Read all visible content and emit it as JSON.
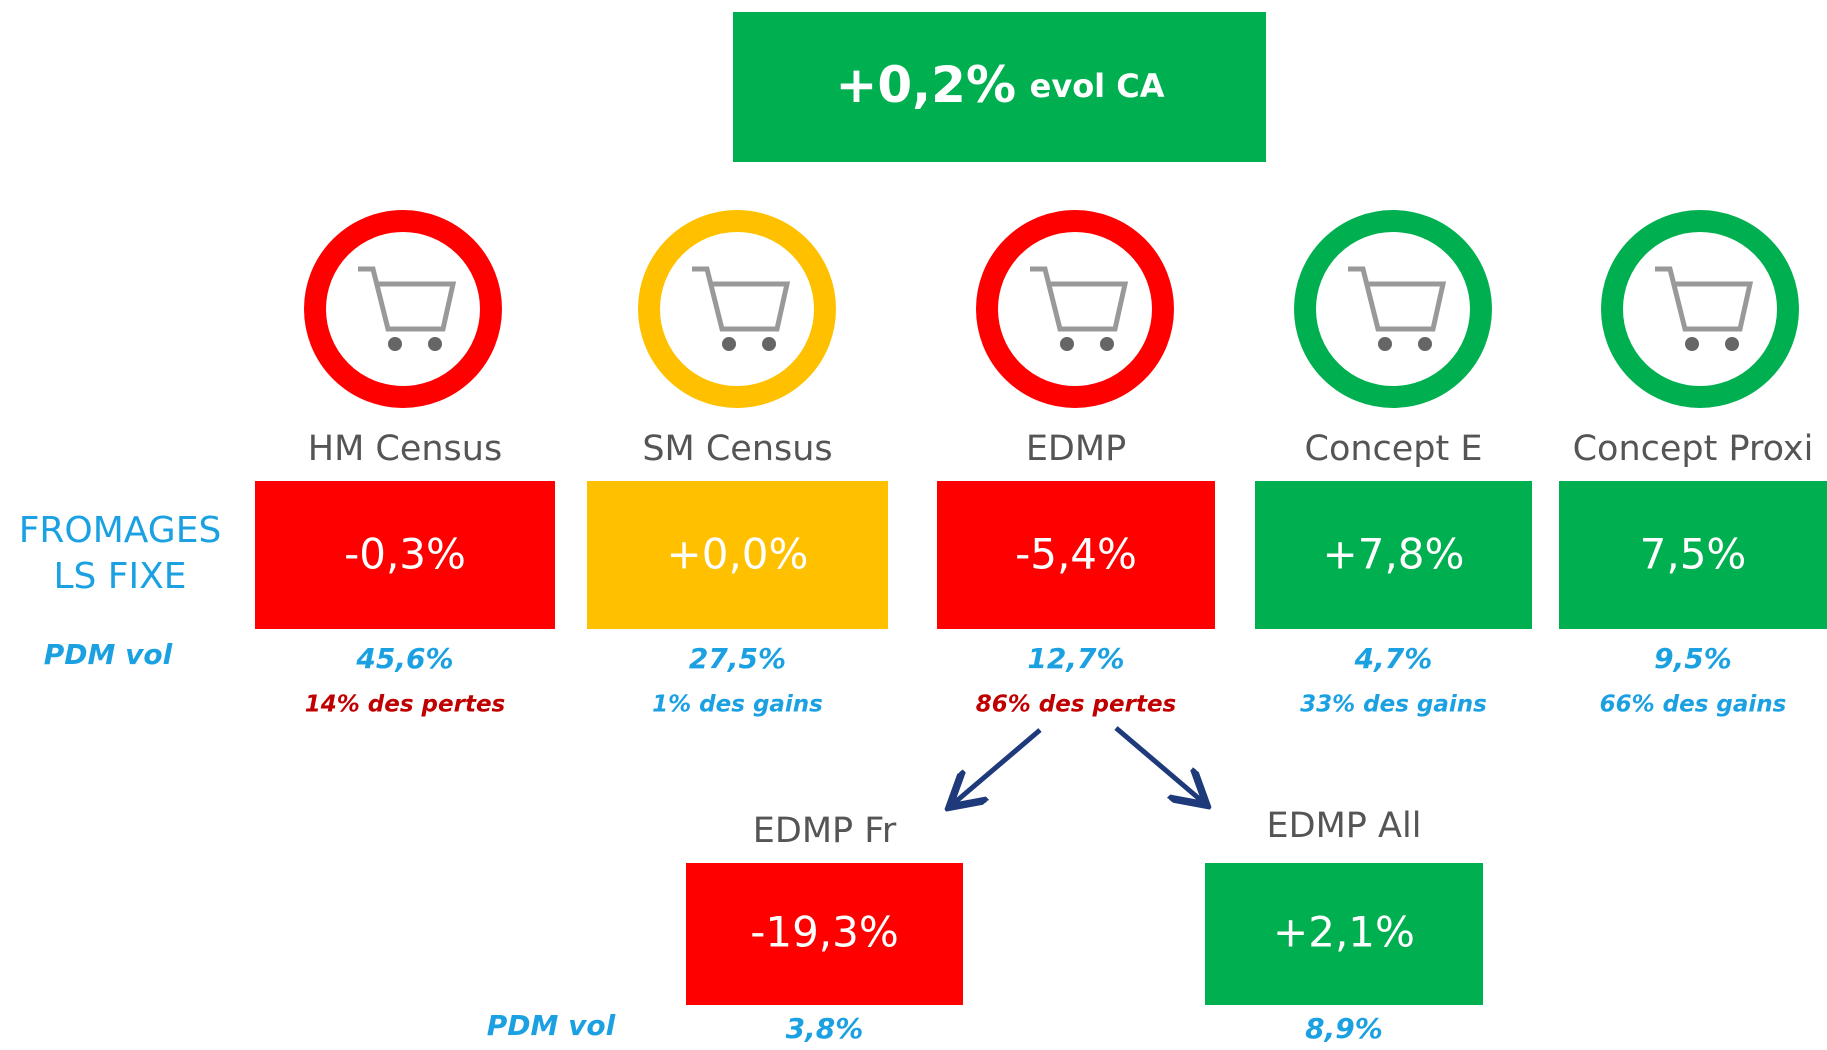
{
  "header": {
    "value": "+0,2%",
    "label": "evol CA",
    "color": "#00b050"
  },
  "row_label": [
    "FROMAGES",
    "LS FIXE"
  ],
  "pdm_label": "PDM vol",
  "formats": [
    {
      "name": "HM Census",
      "value": "-0,3%",
      "pdm": "45,6%",
      "share": "14% des pertes",
      "color": "#ff0000",
      "share_color": "#c00000"
    },
    {
      "name": "SM Census",
      "value": "+0,0%",
      "pdm": "27,5%",
      "share": "1% des gains",
      "color": "#ffc000",
      "share_color": "#1ba1e2"
    },
    {
      "name": "EDMP",
      "value": "-5,4%",
      "pdm": "12,7%",
      "share": "86% des pertes",
      "color": "#ff0000",
      "share_color": "#c00000"
    },
    {
      "name": "Concept E",
      "value": "+7,8%",
      "pdm": "4,7%",
      "share": "33% des gains",
      "color": "#00b050",
      "share_color": "#1ba1e2"
    },
    {
      "name": "Concept Proxi",
      "value": "7,5%",
      "pdm": "9,5%",
      "share": "66% des gains",
      "color": "#00b050",
      "share_color": "#1ba1e2"
    }
  ],
  "edmp_split": [
    {
      "name": "EDMP Fr",
      "value": "-19,3%",
      "pdm": "3,8%",
      "color": "#ff0000"
    },
    {
      "name": "EDMP All",
      "value": "+2,1%",
      "pdm": "8,9%",
      "color": "#00b050"
    }
  ]
}
